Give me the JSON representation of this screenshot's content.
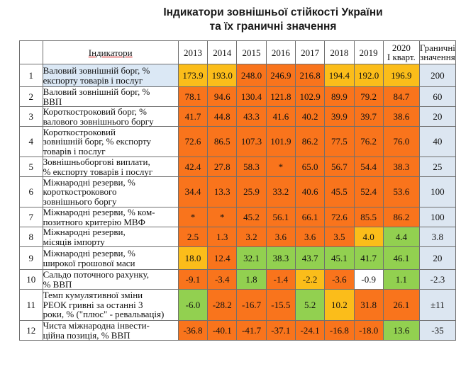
{
  "title": {
    "line1": "Індикатори зовнішньої стійкості України",
    "line2": "та їх граничні значення"
  },
  "table": {
    "headers": {
      "indicator": "Індикатори",
      "years": [
        "2013",
        "2014",
        "2015",
        "2016",
        "2017",
        "2018",
        "2019"
      ],
      "y2020": [
        "2020",
        "І кварт."
      ],
      "limit": [
        "Граничні",
        "значення"
      ]
    },
    "rows": [
      {
        "n": "1",
        "name": [
          "Валовий зовнішній борг, %",
          "експорту товарів і послуг"
        ],
        "values": [
          "173.9",
          "193.0",
          "248.0",
          "246.9",
          "216.8",
          "194.4",
          "192.0",
          "196.9"
        ],
        "colors": [
          "#fbbd1a",
          "#fbbd1a",
          "#f9741c",
          "#f9741c",
          "#f9741c",
          "#fbbd1a",
          "#fbbd1a",
          "#fbbd1a"
        ],
        "limit": "200"
      },
      {
        "n": "2",
        "name": [
          "Валовий зовнішній борг, %",
          "ВВП"
        ],
        "values": [
          "78.1",
          "94.6",
          "130.4",
          "121.8",
          "102.9",
          "89.9",
          "79.2",
          "84.7"
        ],
        "colors": [
          "#f9741c",
          "#f9741c",
          "#f9741c",
          "#f9741c",
          "#f9741c",
          "#f9741c",
          "#f9741c",
          "#f9741c"
        ],
        "limit": "60"
      },
      {
        "n": "3",
        "name": [
          "Короткостроковий борг, %",
          "валового зовнішнього боргу"
        ],
        "values": [
          "41.7",
          "44.8",
          "43.3",
          "41.6",
          "40.2",
          "39.9",
          "39.7",
          "38.6"
        ],
        "colors": [
          "#f9741c",
          "#f9741c",
          "#f9741c",
          "#f9741c",
          "#f9741c",
          "#f9741c",
          "#f9741c",
          "#f9741c"
        ],
        "limit": "20"
      },
      {
        "n": "4",
        "name": [
          "Короткостроковий",
          "зовнішній борг, % експорту",
          "товарів і послуг"
        ],
        "values": [
          "72.6",
          "86.5",
          "107.3",
          "101.9",
          "86.2",
          "77.5",
          "76.2",
          "76.0"
        ],
        "colors": [
          "#f9741c",
          "#f9741c",
          "#f9741c",
          "#f9741c",
          "#f9741c",
          "#f9741c",
          "#f9741c",
          "#f9741c"
        ],
        "limit": "40"
      },
      {
        "n": "5",
        "name": [
          "Зовнішньоборгові виплати,",
          "% експорту товарів і послуг"
        ],
        "values": [
          "42.4",
          "27.8",
          "58.3",
          "*",
          "65.0",
          "56.7",
          "54.4",
          "38.3"
        ],
        "colors": [
          "#f9741c",
          "#f9741c",
          "#f9741c",
          "#f9741c",
          "#f9741c",
          "#f9741c",
          "#f9741c",
          "#f9741c"
        ],
        "limit": "25"
      },
      {
        "n": "6",
        "name": [
          "Міжнародні резерви, %",
          "короткострокового",
          "зовнішнього боргу"
        ],
        "values": [
          "34.4",
          "13.3",
          "25.9",
          "33.2",
          "40.6",
          "45.5",
          "52.4",
          "53.6"
        ],
        "colors": [
          "#f9741c",
          "#f9741c",
          "#f9741c",
          "#f9741c",
          "#f9741c",
          "#f9741c",
          "#f9741c",
          "#f9741c"
        ],
        "limit": "100"
      },
      {
        "n": "7",
        "name": [
          "Міжнародні резерви, % ком-",
          "позитного критерію МВФ"
        ],
        "values": [
          "*",
          "*",
          "45.2",
          "56.1",
          "66.1",
          "72.6",
          "85.5",
          "86.2"
        ],
        "colors": [
          "#f9741c",
          "#f9741c",
          "#f9741c",
          "#f9741c",
          "#f9741c",
          "#f9741c",
          "#f9741c",
          "#f9741c"
        ],
        "limit": "100"
      },
      {
        "n": "8",
        "name": [
          "Міжнародні резерви,",
          "місяців імпорту"
        ],
        "values": [
          "2.5",
          "1.3",
          "3.2",
          "3.6",
          "3.6",
          "3.5",
          "4.0",
          "4.4"
        ],
        "colors": [
          "#f9741c",
          "#f9741c",
          "#f9741c",
          "#f9741c",
          "#f9741c",
          "#f9741c",
          "#fbbd1a",
          "#92d050"
        ],
        "limit": "3.8"
      },
      {
        "n": "9",
        "name": [
          "Міжнародні резерви, %",
          "широкої грошової маси"
        ],
        "values": [
          "18.0",
          "12.4",
          "32.1",
          "38.3",
          "43.7",
          "45.1",
          "41.7",
          "46.1"
        ],
        "colors": [
          "#fbbd1a",
          "#f9741c",
          "#92d050",
          "#92d050",
          "#92d050",
          "#92d050",
          "#92d050",
          "#92d050"
        ],
        "limit": "20"
      },
      {
        "n": "10",
        "name": [
          "Сальдо поточного рахунку,",
          "% ВВП"
        ],
        "values": [
          "-9.1",
          "-3.4",
          "1.8",
          "-1.4",
          "-2.2",
          "-3.6",
          "-0.9",
          "1.1"
        ],
        "colors": [
          "#f9741c",
          "#f9741c",
          "#92d050",
          "#f9741c",
          "#fbbd1a",
          "#f9741c",
          "#ffffff",
          "#92d050"
        ],
        "limit": "-2.3"
      },
      {
        "n": "11",
        "name": [
          "Темп кумулятивної зміни",
          "РЕОК гривні за останні 3",
          "роки, % (\"плюс\" - ревальвація)"
        ],
        "values": [
          "-6.0",
          "-28.2",
          "-16.7",
          "-15.5",
          "5.2",
          "10.2",
          "31.8",
          "26.1"
        ],
        "colors": [
          "#92d050",
          "#f9741c",
          "#f9741c",
          "#f9741c",
          "#92d050",
          "#fbbd1a",
          "#f9741c",
          "#f9741c"
        ],
        "limit": "±11"
      },
      {
        "n": "12",
        "name": [
          "Чиста міжнародна інвести-",
          "ційна позиція,  % ВВП"
        ],
        "values": [
          "-36.8",
          "-40.1",
          "-41.7",
          "-37.1",
          "-24.1",
          "-16.8",
          "-18.0",
          "13.6"
        ],
        "colors": [
          "#f9741c",
          "#f9741c",
          "#f9741c",
          "#f9741c",
          "#f9741c",
          "#f9741c",
          "#f9741c",
          "#92d050"
        ],
        "limit": "-35"
      }
    ]
  }
}
